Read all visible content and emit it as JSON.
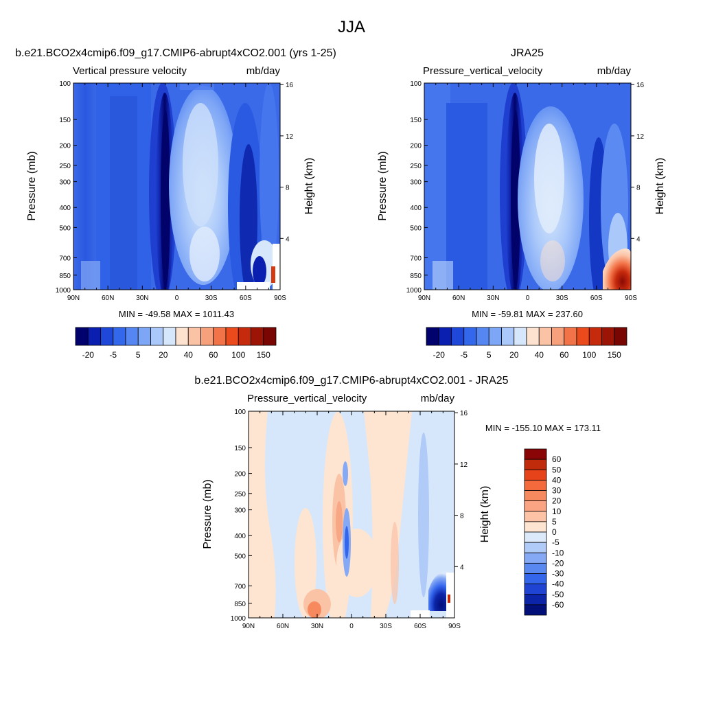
{
  "page": {
    "title": "JJA"
  },
  "chart_data": [
    {
      "type": "heatmap",
      "title": "b.e21.BCO2x4cmip6.f09_g17.CMIP6-abrupt4xCO2.001 (yrs 1-25)",
      "subtitle_left": "Vertical pressure velocity",
      "subtitle_right": "mb/day",
      "ylabel": "Pressure (mb)",
      "y2label": "Height (km)",
      "x_ticks": [
        "90N",
        "60N",
        "30N",
        "0",
        "30S",
        "60S",
        "90S"
      ],
      "y_ticks": [
        "100",
        "150",
        "200",
        "250",
        "300",
        "400",
        "500",
        "700",
        "850",
        "1000"
      ],
      "y2_ticks": [
        "16",
        "12",
        "8",
        "4"
      ],
      "stats": "MIN = -49.58  MAX = 1011.43",
      "colorbar_labels": [
        "-20",
        "-5",
        "5",
        "20",
        "40",
        "60",
        "100",
        "150"
      ],
      "colors": [
        "#02026e",
        "#0a1fb0",
        "#1f48d8",
        "#3468ec",
        "#5586f2",
        "#7ea6f6",
        "#aac8fa",
        "#d6e7fb",
        "#fde2cf",
        "#fbc3a6",
        "#f7a07c",
        "#f37348",
        "#ea4a1c",
        "#c62a0c",
        "#9c1406",
        "#7a0604"
      ]
    },
    {
      "type": "heatmap",
      "title": "JRA25",
      "subtitle_left": "Pressure_vertical_velocity",
      "subtitle_right": "mb/day",
      "ylabel": "Pressure (mb)",
      "y2label": "Height (km)",
      "x_ticks": [
        "90N",
        "60N",
        "30N",
        "0",
        "30S",
        "60S",
        "90S"
      ],
      "y_ticks": [
        "100",
        "150",
        "200",
        "250",
        "300",
        "400",
        "500",
        "700",
        "850",
        "1000"
      ],
      "y2_ticks": [
        "16",
        "12",
        "8",
        "4"
      ],
      "stats": "MIN = -59.81  MAX = 237.60",
      "colorbar_labels": [
        "-20",
        "-5",
        "5",
        "20",
        "40",
        "60",
        "100",
        "150"
      ],
      "colors": [
        "#02026e",
        "#0a1fb0",
        "#1f48d8",
        "#3468ec",
        "#5586f2",
        "#7ea6f6",
        "#aac8fa",
        "#d6e7fb",
        "#fde2cf",
        "#fbc3a6",
        "#f7a07c",
        "#f37348",
        "#ea4a1c",
        "#c62a0c",
        "#9c1406",
        "#7a0604"
      ]
    },
    {
      "type": "heatmap",
      "title": "b.e21.BCO2x4cmip6.f09_g17.CMIP6-abrupt4xCO2.001 - JRA25",
      "subtitle_left": "Pressure_vertical_velocity",
      "subtitle_right": "mb/day",
      "ylabel": "Pressure (mb)",
      "y2label": "Height (km)",
      "x_ticks": [
        "90N",
        "60N",
        "30N",
        "0",
        "30S",
        "60S",
        "90S"
      ],
      "y_ticks": [
        "100",
        "150",
        "200",
        "250",
        "300",
        "400",
        "500",
        "700",
        "850",
        "1000"
      ],
      "y2_ticks": [
        "16",
        "12",
        "8",
        "4"
      ],
      "stats": "MIN = -155.10  MAX = 173.11",
      "colorbar_labels": [
        "60",
        "50",
        "40",
        "30",
        "20",
        "10",
        "5",
        "0",
        "-5",
        "-10",
        "-20",
        "-30",
        "-40",
        "-50",
        "-60"
      ],
      "colors": [
        "#8a0606",
        "#c02b0c",
        "#e6431a",
        "#f56a3c",
        "#f7895e",
        "#fba484",
        "#fcc3a6",
        "#fde5d2",
        "#dce9fb",
        "#b0cbf8",
        "#86a9f5",
        "#5a88f1",
        "#3466ec",
        "#1f44d4",
        "#0c24a8",
        "#020f78"
      ]
    }
  ]
}
